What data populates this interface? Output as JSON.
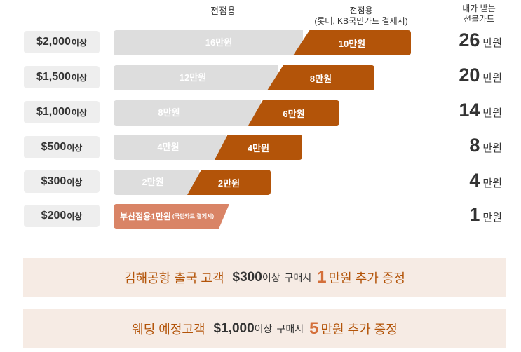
{
  "header": {
    "col1": "전점용",
    "col2_line1": "전점용",
    "col2_line2": "(롯데, KB국민카드 결제시)",
    "col3_line1": "내가 받는",
    "col3_line2": "선불카드"
  },
  "tiers": [
    {
      "amount": "$2,000",
      "suffix": "이상",
      "base": "16만원",
      "card": "10만원",
      "total": "26",
      "unit": "만원",
      "base_value": 16,
      "card_value": 10
    },
    {
      "amount": "$1,500",
      "suffix": "이상",
      "base": "12만원",
      "card": "8만원",
      "total": "20",
      "unit": "만원",
      "base_value": 12,
      "card_value": 8
    },
    {
      "amount": "$1,000",
      "suffix": "이상",
      "base": "8만원",
      "card": "6만원",
      "total": "14",
      "unit": "만원",
      "base_value": 8,
      "card_value": 6
    },
    {
      "amount": "$500",
      "suffix": "이상",
      "base": "4만원",
      "card": "4만원",
      "total": "8",
      "unit": "만원",
      "base_value": 4,
      "card_value": 4
    },
    {
      "amount": "$300",
      "suffix": "이상",
      "base": "2만원",
      "card": "2만원",
      "total": "4",
      "unit": "만원",
      "base_value": 2,
      "card_value": 2
    },
    {
      "amount": "$200",
      "suffix": "이상",
      "special": "부산점용1만원",
      "special_note": "(국민카드 결제시)",
      "total": "1",
      "unit": "만원"
    }
  ],
  "banners": [
    {
      "label": "김해공항 출국 고객",
      "amount": "$300",
      "suffix": "이상",
      "buy": "구매시",
      "big": "1",
      "rest": "만원 추가 증정"
    },
    {
      "label": "웨딩 예정고객",
      "amount": "$1,000",
      "suffix": "이상",
      "buy": "구매시",
      "big": "5",
      "rest": "만원 추가 증정"
    }
  ],
  "colors": {
    "accent": "#b35409",
    "gray_bar": "#dddddd",
    "special": "#d98466",
    "banner_bg": "#f6ebe4"
  }
}
